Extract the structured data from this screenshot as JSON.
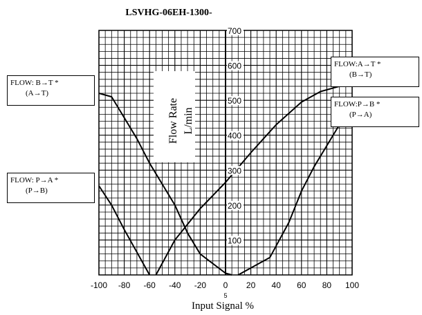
{
  "chart_data": {
    "type": "line",
    "title": "LSVHG-06EH-1300-",
    "xlabel": "Input Signal %",
    "ylabel_line1": "Flow Rate",
    "ylabel_line2": "L/min",
    "xlim": [
      -100,
      100
    ],
    "ylim": [
      0,
      700
    ],
    "x_ticks": [
      "-100",
      "-80",
      "-60",
      "-40",
      "-20",
      "0",
      "20",
      "40",
      "60",
      "80",
      "100"
    ],
    "x_tick_values": [
      -100,
      -80,
      -60,
      -40,
      -20,
      0,
      20,
      40,
      60,
      80,
      100
    ],
    "y_ticks": [
      "100",
      "200",
      "300",
      "400",
      "500",
      "600",
      "700"
    ],
    "y_tick_values": [
      100,
      200,
      300,
      400,
      500,
      600,
      700
    ],
    "x_extra_tick": "5",
    "grid": true,
    "series": [
      {
        "name": "FLOW: B→T * (A→T)",
        "x": [
          -100,
          -90,
          -80,
          -70,
          -60,
          -50,
          -40,
          -30,
          -20,
          0,
          5
        ],
        "y": [
          520,
          510,
          450,
          390,
          320,
          260,
          200,
          120,
          60,
          5,
          0
        ]
      },
      {
        "name": "FLOW: P→A * (P→B)",
        "x": [
          -100,
          -90,
          -80,
          -70,
          -60
        ],
        "y": [
          255,
          200,
          130,
          65,
          0
        ]
      },
      {
        "name": "FLOW:A→T * (B→T)",
        "x": [
          -55,
          -40,
          -20,
          0,
          20,
          40,
          60,
          75,
          90,
          100
        ],
        "y": [
          0,
          100,
          190,
          265,
          350,
          430,
          495,
          525,
          540,
          545
        ]
      },
      {
        "name": "FLOW:P→B * (P→A)",
        "x": [
          10,
          35,
          50,
          60,
          70,
          80,
          90,
          100
        ],
        "y": [
          0,
          50,
          150,
          240,
          310,
          370,
          430,
          490
        ]
      }
    ],
    "annotations": [
      {
        "line1": "FLOW: B→T *",
        "line2": "(A→T)"
      },
      {
        "line1": "FLOW: P→A *",
        "line2": "(P→B)"
      },
      {
        "line1": "FLOW:A→T *",
        "line2": "(B→T)"
      },
      {
        "line1": "FLOW:P→B *",
        "line2": "(P→A)"
      }
    ]
  }
}
